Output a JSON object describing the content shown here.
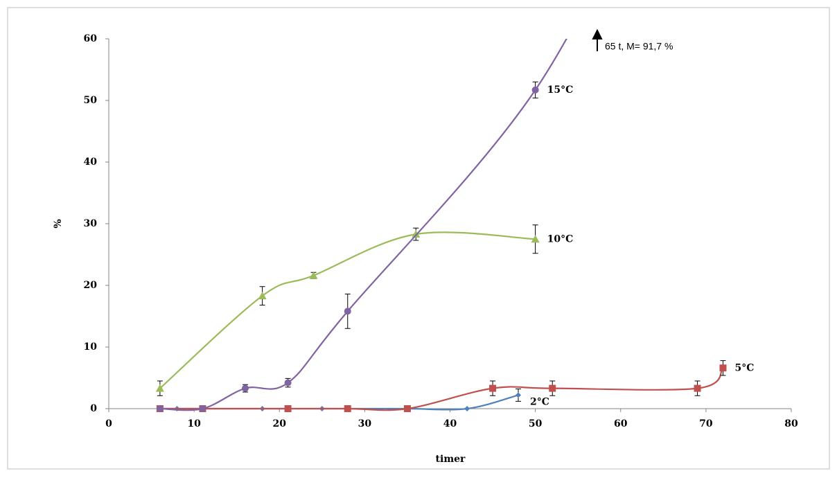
{
  "chart_data": {
    "type": "line",
    "x_label": "timer",
    "y_label": "%",
    "annotation": "65 t, M= 91,7 %",
    "xlim": [
      0,
      80
    ],
    "xticks": [
      0,
      10,
      20,
      30,
      40,
      50,
      60,
      70,
      80
    ],
    "ylim": [
      0,
      60
    ],
    "yticks": [
      0,
      10,
      20,
      30,
      40,
      50,
      60
    ],
    "grid": false,
    "series": [
      {
        "name": "2°C",
        "color": "#4f81bd",
        "marker": "diamond",
        "x": [
          6,
          8,
          11,
          18,
          21,
          25,
          28,
          35,
          42,
          48
        ],
        "values": [
          0,
          0,
          0,
          0,
          0,
          0,
          0,
          0,
          0,
          2.2
        ],
        "errors": [
          null,
          null,
          null,
          null,
          null,
          null,
          null,
          null,
          null,
          1.0
        ]
      },
      {
        "name": "5°C",
        "color": "#c0504d",
        "marker": "square",
        "x": [
          6,
          11,
          21,
          28,
          35,
          45,
          52,
          69,
          72
        ],
        "values": [
          0,
          0,
          0,
          0,
          0,
          3.3,
          3.3,
          3.3,
          6.6
        ],
        "errors": [
          null,
          null,
          null,
          null,
          null,
          1.2,
          1.2,
          1.2,
          1.2
        ]
      },
      {
        "name": "10°C",
        "color": "#9bbb59",
        "marker": "triangle",
        "x": [
          6,
          18,
          24,
          36,
          50
        ],
        "values": [
          3.3,
          18.3,
          21.6,
          28.3,
          27.5
        ],
        "errors": [
          1.2,
          1.5,
          0.5,
          1.0,
          2.3
        ]
      },
      {
        "name": "15°C",
        "color": "#8064a2",
        "marker": "circle",
        "x": [
          6,
          11,
          16,
          21,
          28,
          50,
          65
        ],
        "values": [
          0,
          0,
          3.3,
          4.2,
          15.8,
          51.7,
          91.7
        ],
        "errors": [
          null,
          null,
          0.6,
          0.7,
          2.8,
          1.3,
          null
        ]
      }
    ]
  }
}
